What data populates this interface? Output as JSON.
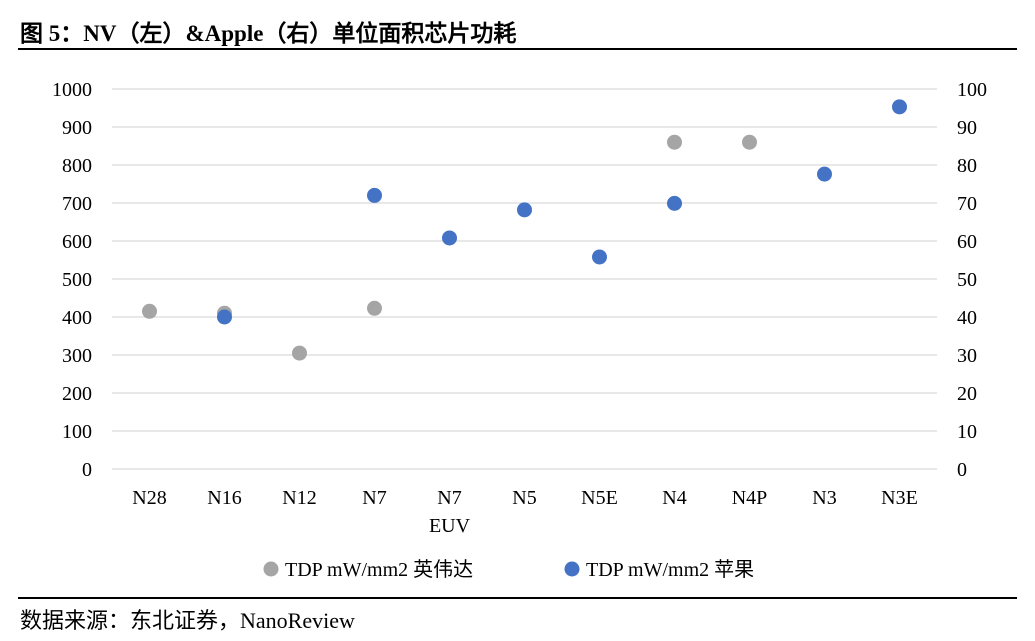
{
  "figure": {
    "title": "图 5：NV（左）&Apple（右）单位面积芯片功耗",
    "source": "数据来源：东北证券，NanoReview"
  },
  "chart_data": {
    "type": "scatter",
    "categories": [
      "N28",
      "N16",
      "N12",
      "N7",
      "N7\nEUV",
      "N5",
      "N5E",
      "N4",
      "N4P",
      "N3",
      "N3E"
    ],
    "y_left": {
      "ylim": [
        0,
        1000
      ],
      "ticks": [
        0,
        100,
        200,
        300,
        400,
        500,
        600,
        700,
        800,
        900,
        1000
      ]
    },
    "y_right": {
      "ylim": [
        0,
        100
      ],
      "ticks": [
        0,
        10,
        20,
        30,
        40,
        50,
        60,
        70,
        80,
        90,
        100
      ]
    },
    "grid": true,
    "legend_position": "bottom",
    "series": [
      {
        "name": "TDP mW/mm2 英伟达",
        "axis": "left",
        "color": "#a5a5a5",
        "values": [
          415,
          410,
          305,
          null,
          null,
          null,
          null,
          null,
          null,
          null,
          null
        ],
        "extra_points": [
          {
            "category": "N7",
            "value": 423
          },
          {
            "category": "N4",
            "value": 860
          },
          {
            "category": "N4P",
            "value": 860
          }
        ]
      },
      {
        "name": "TDP mW/mm2 苹果",
        "axis": "right",
        "color": "#4472c4",
        "values": [
          null,
          40,
          null,
          72,
          60.8,
          68.2,
          55.8,
          69.9,
          null,
          77.6,
          95.3
        ]
      }
    ]
  }
}
